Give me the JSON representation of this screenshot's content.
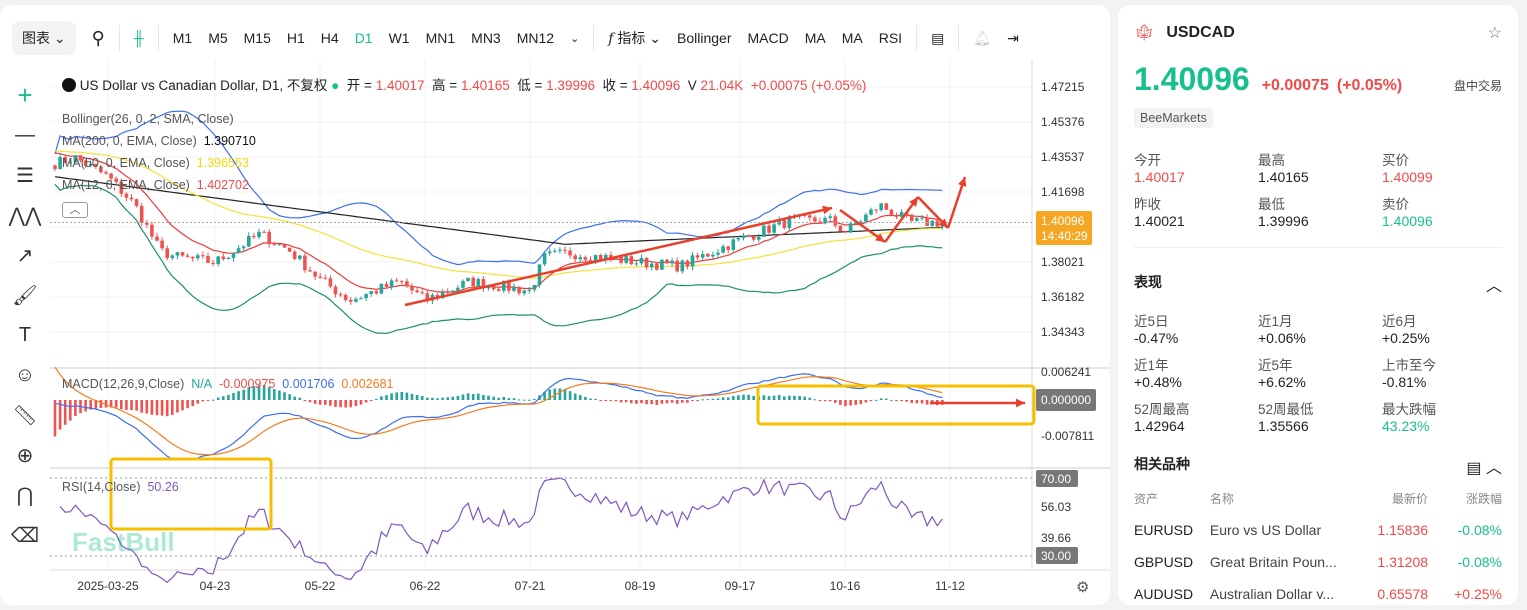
{
  "toolbar": {
    "chart_menu": "图表",
    "timeframes": [
      "M1",
      "M5",
      "M15",
      "H1",
      "H4",
      "D1",
      "W1",
      "MN1",
      "MN3",
      "MN12"
    ],
    "active_timeframe": "D1",
    "indicators_label": "指标",
    "indicator_shortcuts": [
      "Bollinger",
      "MACD",
      "MA",
      "MA",
      "RSI"
    ]
  },
  "legend": {
    "title": "US Dollar vs Canadian Dollar, D1, 不复权",
    "open_label": "开 =",
    "open": "1.40017",
    "high_label": "高 =",
    "high": "1.40165",
    "low_label": "低 =",
    "low": "1.39996",
    "close_label": "收 =",
    "close": "1.40096",
    "vol_label": "V",
    "vol": "21.04K",
    "change": "+0.00075 (+0.05%)",
    "bollinger": "Bollinger(26, 0, 2, SMA, Close)",
    "ma200": "MA(200, 0, EMA, Close)",
    "ma200_val": "1.390710",
    "ma50": "MA(50, 0, EMA, Close)",
    "ma50_val": "1.396553",
    "ma12": "MA(12, 0, EMA, Close)",
    "ma12_val": "1.402702",
    "macd": "MACD(12,26,9,Close)",
    "macd_na": "N/A",
    "macd_hist": "-0.000975",
    "macd_line": "0.001706",
    "macd_signal": "0.002681",
    "rsi": "RSI(14,Close)",
    "rsi_val": "50.26"
  },
  "price_axis": {
    "ticks": [
      "1.47215",
      "1.45376",
      "1.43537",
      "1.41698",
      "1.38021",
      "1.36182",
      "1.34343"
    ],
    "last_price": "1.40096",
    "countdown": "14:40:29"
  },
  "macd_axis": {
    "ticks": [
      "0.006241",
      "-0.007811"
    ],
    "zero": "0.000000"
  },
  "rsi_axis": {
    "ticks": [
      "56.03",
      "39.66"
    ],
    "upper": "70.00",
    "lower": "30.00"
  },
  "date_axis": [
    "2025-03-25",
    "04-23",
    "05-22",
    "06-22",
    "07-21",
    "08-19",
    "09-17",
    "10-16",
    "11-12"
  ],
  "watermark": "FastBull",
  "colors": {
    "up": "#26a69a",
    "down": "#ef5350",
    "bb_upper": "#3d6ef5",
    "bb_lower": "#1a8f6e",
    "ma12": "#ef3b3b",
    "ma50": "#f5e23a",
    "ma200": "#222222",
    "accent": "#17c08c",
    "annotation": "#e8402a",
    "highlight": "#f5c000"
  },
  "chart_data": {
    "type": "candlestick",
    "symbol": "USDCAD",
    "timeframe": "D1",
    "ylim": [
      1.335,
      1.48
    ],
    "close_path": [
      {
        "date": "03-12",
        "close": 1.432
      },
      {
        "date": "03-25",
        "close": 1.435
      },
      {
        "date": "04-02",
        "close": 1.425
      },
      {
        "date": "04-07",
        "close": 1.41
      },
      {
        "date": "04-11",
        "close": 1.386
      },
      {
        "date": "04-23",
        "close": 1.383
      },
      {
        "date": "05-05",
        "close": 1.38
      },
      {
        "date": "05-14",
        "close": 1.395
      },
      {
        "date": "05-22",
        "close": 1.386
      },
      {
        "date": "06-02",
        "close": 1.371
      },
      {
        "date": "06-13",
        "close": 1.36
      },
      {
        "date": "06-22",
        "close": 1.37
      },
      {
        "date": "07-03",
        "close": 1.36
      },
      {
        "date": "07-21",
        "close": 1.37
      },
      {
        "date": "07-28",
        "close": 1.365
      },
      {
        "date": "08-04",
        "close": 1.383
      },
      {
        "date": "08-19",
        "close": 1.385
      },
      {
        "date": "08-28",
        "close": 1.38
      },
      {
        "date": "09-17",
        "close": 1.378
      },
      {
        "date": "09-29",
        "close": 1.392
      },
      {
        "date": "10-10",
        "close": 1.402
      },
      {
        "date": "10-16",
        "close": 1.402
      },
      {
        "date": "10-24",
        "close": 1.396
      },
      {
        "date": "11-01",
        "close": 1.41
      },
      {
        "date": "11-12",
        "close": 1.401
      }
    ]
  },
  "side": {
    "symbol": "USDCAD",
    "price": "1.40096",
    "change": "+0.00075",
    "change_pct": "(+0.05%)",
    "status": "盘中交易",
    "broker": "BeeMarkets",
    "quote": [
      {
        "label": "今开",
        "value": "1.40017",
        "c": "red"
      },
      {
        "label": "最高",
        "value": "1.40165",
        "c": ""
      },
      {
        "label": "买价",
        "value": "1.40099",
        "c": "red"
      },
      {
        "label": "昨收",
        "value": "1.40021",
        "c": ""
      },
      {
        "label": "最低",
        "value": "1.39996",
        "c": ""
      },
      {
        "label": "卖价",
        "value": "1.40096",
        "c": "green"
      }
    ],
    "perf_title": "表现",
    "perf": [
      {
        "label": "近5日",
        "value": "-0.47%",
        "c": ""
      },
      {
        "label": "近1月",
        "value": "+0.06%",
        "c": ""
      },
      {
        "label": "近6月",
        "value": "+0.25%",
        "c": ""
      },
      {
        "label": "近1年",
        "value": "+0.48%",
        "c": ""
      },
      {
        "label": "近5年",
        "value": "+6.62%",
        "c": ""
      },
      {
        "label": "上市至今",
        "value": "-0.81%",
        "c": ""
      },
      {
        "label": "52周最高",
        "value": "1.42964",
        "c": ""
      },
      {
        "label": "52周最低",
        "value": "1.35566",
        "c": ""
      },
      {
        "label": "最大跌幅",
        "value": "43.23%",
        "c": "green"
      }
    ],
    "related_title": "相关品种",
    "cols": [
      "资产",
      "名称",
      "最新价",
      "涨跌幅"
    ],
    "related": [
      {
        "sym": "EURUSD",
        "name": "Euro vs US Dollar",
        "price": "1.15836",
        "chg": "-0.08%"
      },
      {
        "sym": "GBPUSD",
        "name": "Great Britain Poun...",
        "price": "1.31208",
        "chg": "-0.08%"
      },
      {
        "sym": "AUDUSD",
        "name": "Australian Dollar v...",
        "price": "0.65578",
        "chg": "+0.25%"
      }
    ]
  }
}
